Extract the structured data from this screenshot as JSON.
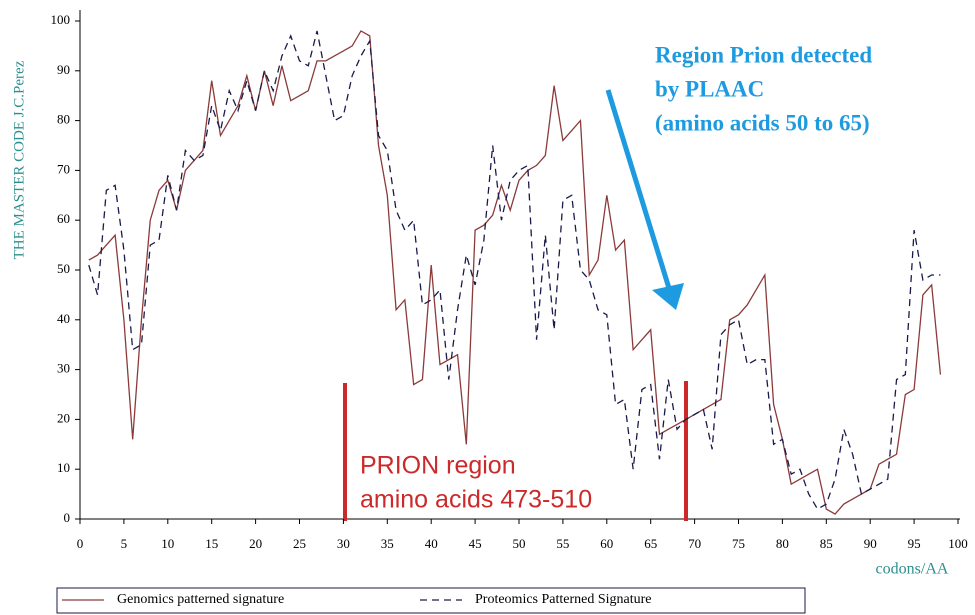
{
  "chart_data": {
    "type": "line",
    "ylabel": "THE MASTER CODE J.C.Perez",
    "xlabel": "codons/AA",
    "xlim": [
      0,
      100
    ],
    "xticks": [
      0,
      5,
      10,
      15,
      20,
      25,
      30,
      35,
      40,
      45,
      50,
      55,
      60,
      65,
      70,
      75,
      80,
      85,
      90,
      95,
      100
    ],
    "ylim": [
      0,
      100
    ],
    "yticks": [
      0,
      10,
      20,
      30,
      40,
      50,
      60,
      70,
      80,
      90,
      100
    ],
    "grid": false,
    "x": [
      1,
      2,
      3,
      4,
      5,
      6,
      7,
      8,
      9,
      10,
      11,
      12,
      13,
      14,
      15,
      16,
      17,
      18,
      19,
      20,
      21,
      22,
      23,
      24,
      25,
      26,
      27,
      28,
      29,
      30,
      31,
      32,
      33,
      34,
      35,
      36,
      37,
      38,
      39,
      40,
      41,
      42,
      43,
      44,
      45,
      46,
      47,
      48,
      49,
      50,
      51,
      52,
      53,
      54,
      55,
      56,
      57,
      58,
      59,
      60,
      61,
      62,
      63,
      64,
      65,
      66,
      67,
      68,
      69,
      70,
      71,
      72,
      73,
      74,
      75,
      76,
      77,
      78,
      79,
      80,
      81,
      82,
      83,
      84,
      85,
      86,
      87,
      88,
      89,
      90,
      91,
      92,
      93,
      94,
      95,
      96,
      97,
      98
    ],
    "series": [
      {
        "name": "Genomics patterned signature",
        "color": "#8b3a3a",
        "dash": "none",
        "values": [
          52,
          53,
          55,
          57,
          40,
          16,
          40,
          60,
          66,
          68,
          62,
          70,
          72,
          74,
          88,
          77,
          80,
          83,
          89,
          82,
          90,
          83,
          91,
          84,
          85,
          86,
          92,
          92,
          93,
          94,
          95,
          98,
          97,
          75,
          65,
          42,
          44,
          27,
          28,
          51,
          31,
          32,
          33,
          15,
          58,
          59,
          61,
          67,
          62,
          68,
          70,
          71,
          73,
          87,
          76,
          78,
          80,
          49,
          52,
          65,
          54,
          56,
          34,
          36,
          38,
          17,
          18,
          19,
          20,
          21,
          22,
          23,
          24,
          40,
          41,
          43,
          46,
          49,
          23,
          16,
          7,
          8,
          9,
          10,
          2,
          1,
          3,
          4,
          5,
          6,
          11,
          12,
          13,
          25,
          26,
          45,
          47,
          29
        ]
      },
      {
        "name": "Proteomics Patterned Signature",
        "color": "#1a1a4a",
        "dash": "7 5",
        "values": [
          51,
          45,
          66,
          67,
          54,
          34,
          35,
          55,
          56,
          69,
          62,
          74,
          72,
          73,
          83,
          78,
          86,
          82,
          88,
          82,
          90,
          86,
          93,
          97,
          92,
          91,
          98,
          89,
          80,
          81,
          89,
          93,
          96,
          77,
          74,
          62,
          58,
          60,
          43,
          44,
          46,
          28,
          42,
          53,
          47,
          56,
          75,
          60,
          68,
          70,
          71,
          36,
          57,
          38,
          64,
          65,
          50,
          48,
          42,
          41,
          23,
          24,
          10,
          26,
          27,
          12,
          28,
          18,
          20,
          21,
          22,
          14,
          37,
          39,
          40,
          31,
          32,
          32,
          15,
          16,
          9,
          10,
          5,
          2,
          3,
          8,
          18,
          13,
          5,
          6,
          7,
          8,
          28,
          29,
          58,
          48,
          49,
          49
        ]
      }
    ],
    "annotations": [
      {
        "lines": [
          "Region Prion detected",
          "by PLAAC",
          "(amino acids 50 to 65)"
        ],
        "color": "#1e9be0"
      },
      {
        "lines": [
          "PRION region",
          "amino acids 473-510"
        ],
        "color": "#cc2a2a"
      }
    ]
  }
}
